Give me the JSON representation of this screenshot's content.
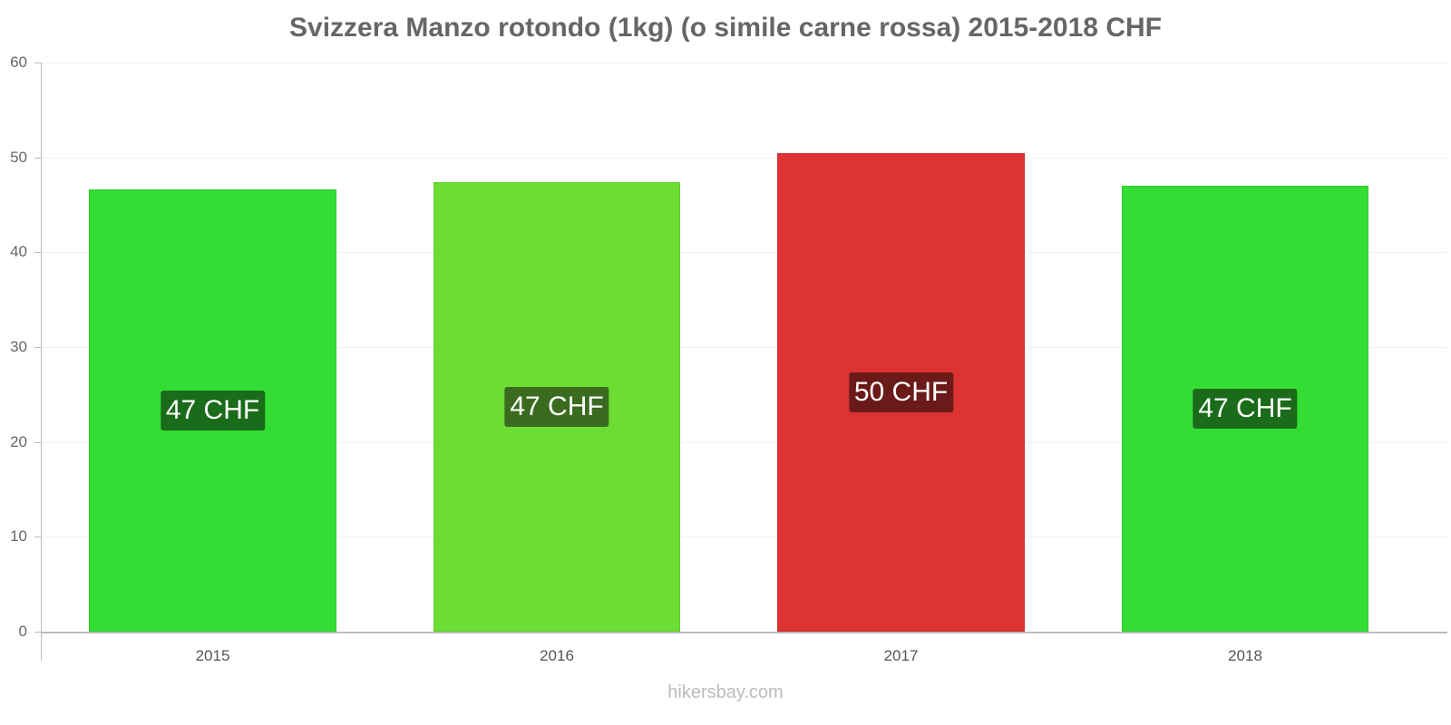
{
  "title": "Svizzera Manzo rotondo (1kg) (o simile carne rossa) 2015-2018 CHF",
  "watermark": "hikersbay.com",
  "y_axis": {
    "ticks": [
      "0",
      "10",
      "20",
      "30",
      "40",
      "50",
      "60"
    ]
  },
  "bars": [
    {
      "year": "2015",
      "label": "47 CHF",
      "value": 46.6,
      "color": "#33dd33",
      "border": "#2ecc2e",
      "label_bg": "#1a6b1a"
    },
    {
      "year": "2016",
      "label": "47 CHF",
      "value": 47.4,
      "color": "#6bdd33",
      "border": "#5fcc2e",
      "label_bg": "#3a6b1f"
    },
    {
      "year": "2017",
      "label": "50 CHF",
      "value": 50.4,
      "color": "#dd3333",
      "border": "#cc2e2e",
      "label_bg": "#6b1a1a"
    },
    {
      "year": "2018",
      "label": "47 CHF",
      "value": 47.0,
      "color": "#33dd33",
      "border": "#2ecc2e",
      "label_bg": "#1a6b1a"
    }
  ],
  "chart_data": {
    "type": "bar",
    "title": "Svizzera Manzo rotondo (1kg) (o simile carne rossa) 2015-2018 CHF",
    "categories": [
      "2015",
      "2016",
      "2017",
      "2018"
    ],
    "values": [
      46.6,
      47.4,
      50.4,
      47.0
    ],
    "data_labels": [
      "47 CHF",
      "47 CHF",
      "50 CHF",
      "47 CHF"
    ],
    "xlabel": "",
    "ylabel": "",
    "ylim": [
      0,
      60
    ],
    "yticks": [
      0,
      10,
      20,
      30,
      40,
      50,
      60
    ],
    "grid": true,
    "legend": null,
    "bar_colors": [
      "#33dd33",
      "#6bdd33",
      "#dd3333",
      "#33dd33"
    ]
  }
}
